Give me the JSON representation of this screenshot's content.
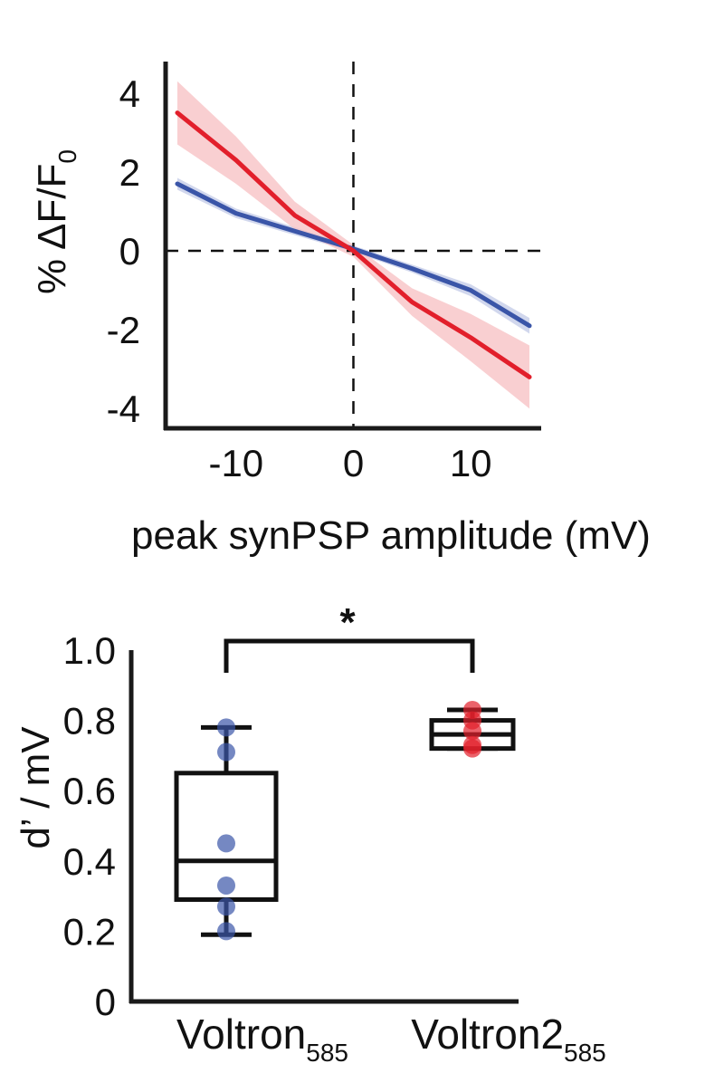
{
  "colors": {
    "voltron": "#3a55a8",
    "voltron_band": "#c5cde8",
    "voltron2": "#e21f2b",
    "voltron2_band": "#f7c3c6",
    "axis": "#1a1a1a"
  },
  "chart_data": [
    {
      "type": "line",
      "ylabel_main": "% ΔF/F",
      "ylabel_sub": "0",
      "xlabel": "peak synPSP amplitude (mV)",
      "xlim": [
        -16,
        16
      ],
      "ylim": [
        -4.5,
        4.8
      ],
      "xticks": [
        -10,
        0,
        10
      ],
      "yticks": [
        4,
        2,
        0,
        -2,
        -4
      ],
      "reference_lines": {
        "x": 0,
        "y": 0
      },
      "series": [
        {
          "key": "voltron",
          "x": [
            -15,
            -10,
            -5,
            0,
            5,
            10,
            15
          ],
          "y": [
            1.7,
            0.95,
            0.5,
            0.05,
            -0.45,
            -1.0,
            -1.9
          ],
          "band": [
            0.15,
            0.12,
            0.1,
            0.08,
            0.1,
            0.15,
            0.2
          ]
        },
        {
          "key": "voltron2",
          "x": [
            -15,
            -10,
            -5,
            0,
            5,
            10,
            15
          ],
          "y": [
            3.5,
            2.3,
            0.9,
            0.0,
            -1.3,
            -2.2,
            -3.2
          ],
          "band": [
            0.8,
            0.6,
            0.35,
            0.15,
            0.35,
            0.6,
            0.8
          ]
        }
      ]
    },
    {
      "type": "box",
      "ylabel": "d’ / mV",
      "ylim": [
        0,
        1.0
      ],
      "yticks": [
        "1.0",
        "0.8",
        "0.6",
        "0.4",
        "0.2",
        "0"
      ],
      "significance": "*",
      "groups": [
        {
          "key": "voltron",
          "label_main": "Voltron",
          "label_sub": "585",
          "whisker_low": 0.19,
          "q1": 0.29,
          "median": 0.4,
          "q3": 0.65,
          "whisker_high": 0.78,
          "points": [
            0.78,
            0.71,
            0.45,
            0.33,
            0.27,
            0.2
          ]
        },
        {
          "key": "voltron2",
          "label_main": "Voltron2",
          "label_sub": "585",
          "whisker_low": 0.72,
          "q1": 0.72,
          "median": 0.76,
          "q3": 0.8,
          "whisker_high": 0.83,
          "points": [
            0.83,
            0.8,
            0.77,
            0.73,
            0.72
          ]
        }
      ]
    }
  ]
}
